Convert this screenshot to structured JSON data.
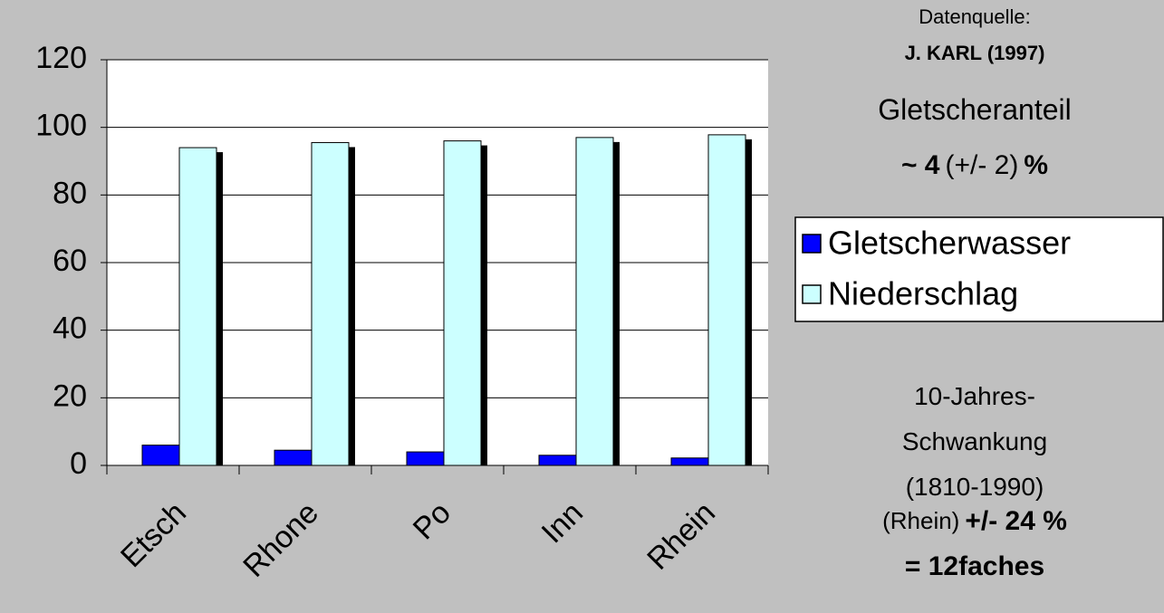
{
  "chart_data": {
    "type": "bar",
    "categories": [
      "Etsch",
      "Rhone",
      "Po",
      "Inn",
      "Rhein"
    ],
    "series": [
      {
        "name": "Gletscherwasser",
        "color": "#0000ff",
        "values": [
          6,
          4.5,
          4,
          3,
          2.2
        ]
      },
      {
        "name": "Niederschlag",
        "color": "#ccffff",
        "values": [
          94,
          95.5,
          96,
          97,
          97.8
        ]
      }
    ],
    "ylim": [
      0,
      120
    ],
    "yticks": [
      0,
      20,
      40,
      60,
      80,
      100,
      120
    ],
    "grid": true,
    "legend": "right",
    "annotations": [
      "Datenquelle:",
      "J. KARL (1997)",
      "Gletscheranteil",
      "~ 4",
      "(+/- 2)",
      "%",
      "10-Jahres-",
      "Schwankung",
      "(1810-1990)",
      "(Rhein)",
      "+/- 24 %",
      "= 12faches"
    ]
  }
}
